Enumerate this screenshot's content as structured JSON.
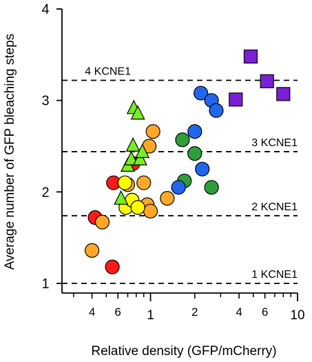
{
  "chart_data": {
    "type": "scatter",
    "title": "",
    "xlabel": "Relative density (GFP/mCherry)",
    "ylabel": "Average number of GFP bleaching steps",
    "x_scale": "log",
    "xlim": [
      0.25,
      10
    ],
    "ylim": [
      1,
      4
    ],
    "x_major_ticks": [
      1,
      10
    ],
    "x_major_tick_labels": [
      "1",
      "10"
    ],
    "x_minor_ticks": [
      0.4,
      0.6,
      2,
      4,
      6
    ],
    "x_minor_tick_labels": [
      "4",
      "6",
      "2",
      "4",
      "6"
    ],
    "x_unlabeled_minor_ticks": [
      0.3,
      0.5,
      0.7,
      0.8,
      0.9,
      3,
      5,
      7,
      8,
      9
    ],
    "y_ticks": [
      1,
      2,
      3,
      4
    ],
    "y_tick_labels": [
      "1",
      "2",
      "3",
      "4"
    ],
    "grid": false,
    "reference_lines": [
      {
        "y": 1.0,
        "label": "1 KCNE1"
      },
      {
        "y": 1.74,
        "label": "2 KCNE1"
      },
      {
        "y": 2.44,
        "label": "3 KCNE1"
      },
      {
        "y": 3.22,
        "label": "4 KCNE1"
      }
    ],
    "series": [
      {
        "marker": "circle",
        "color": "#ff1a1a",
        "points": [
          [
            0.42,
            1.72
          ],
          [
            0.55,
            1.18
          ],
          [
            0.56,
            2.1
          ],
          [
            0.76,
            2.31
          ]
        ]
      },
      {
        "marker": "circle",
        "color": "#ffa726",
        "points": [
          [
            0.4,
            1.36
          ],
          [
            0.47,
            1.67
          ],
          [
            0.7,
            2.08
          ],
          [
            0.9,
            2.1
          ],
          [
            0.95,
            1.86
          ],
          [
            0.98,
            2.5
          ],
          [
            1.0,
            1.79
          ],
          [
            1.04,
            2.66
          ],
          [
            1.3,
            1.93
          ]
        ]
      },
      {
        "marker": "circle",
        "color": "#ffff00",
        "points": [
          [
            0.67,
            2.1
          ],
          [
            0.68,
            1.83
          ],
          [
            0.75,
            1.91
          ],
          [
            0.82,
            1.83
          ]
        ]
      },
      {
        "marker": "triangle",
        "color": "#77ee22",
        "points": [
          [
            0.63,
            1.92
          ],
          [
            0.7,
            2.28
          ],
          [
            0.74,
            2.35
          ],
          [
            0.76,
            2.5
          ],
          [
            0.77,
            2.91
          ],
          [
            0.82,
            2.85
          ],
          [
            0.85,
            2.35
          ],
          [
            0.88,
            2.43
          ]
        ]
      },
      {
        "marker": "circle",
        "color": "#2e9e3a",
        "points": [
          [
            1.65,
            2.57
          ],
          [
            1.7,
            2.12
          ],
          [
            2.0,
            2.42
          ],
          [
            2.6,
            2.05
          ]
        ]
      },
      {
        "marker": "circle",
        "color": "#2266ee",
        "points": [
          [
            1.55,
            2.05
          ],
          [
            2.0,
            2.66
          ],
          [
            2.2,
            3.08
          ],
          [
            2.25,
            2.25
          ],
          [
            2.6,
            3.0
          ],
          [
            2.8,
            2.89
          ]
        ]
      },
      {
        "marker": "square",
        "color": "#7a1fd6",
        "points": [
          [
            3.8,
            3.01
          ],
          [
            4.8,
            3.48
          ],
          [
            6.2,
            3.21
          ],
          [
            8.0,
            3.07
          ]
        ]
      }
    ]
  }
}
